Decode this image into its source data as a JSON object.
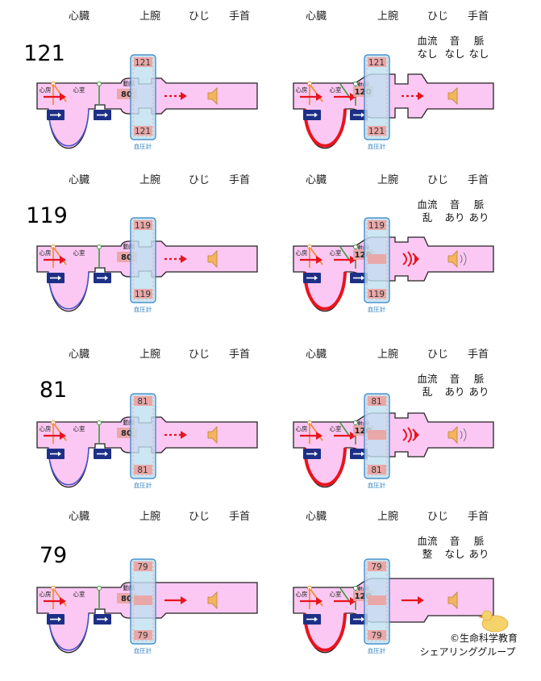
{
  "labels": {
    "heart": "心臓",
    "upper_arm": "上腕",
    "elbow": "ひじ",
    "wrist": "手首",
    "atrium": "心房",
    "ventricle": "心室",
    "artery": "動脈",
    "gauge": "血圧計",
    "flow": "血流",
    "sound": "音",
    "pulse": "脈"
  },
  "rows": [
    {
      "cuff_pressure": "121",
      "left": {
        "cuff_top": "121",
        "cuff_bottom": "121",
        "artery_value": "80",
        "state": "open-valve"
      },
      "right": {
        "cuff_top": "121",
        "cuff_bottom": "121",
        "artery_value": "120",
        "state": "closed",
        "flow": "なし",
        "sound": "なし",
        "pulse": "なし"
      }
    },
    {
      "cuff_pressure": "119",
      "left": {
        "cuff_top": "119",
        "cuff_bottom": "119",
        "artery_value": "80",
        "state": "open-valve"
      },
      "right": {
        "cuff_top": "119",
        "cuff_bottom": "119",
        "artery_value": "120",
        "state": "turbulent",
        "flow": "乱",
        "sound": "あり",
        "pulse": "あり"
      }
    },
    {
      "cuff_pressure": "81",
      "left": {
        "cuff_top": "81",
        "cuff_bottom": "81",
        "artery_value": "80",
        "state": "open-valve"
      },
      "right": {
        "cuff_top": "81",
        "cuff_bottom": "81",
        "artery_value": "120",
        "state": "turbulent",
        "flow": "乱",
        "sound": "あり",
        "pulse": "あり"
      }
    },
    {
      "cuff_pressure": "79",
      "left": {
        "cuff_top": "79",
        "cuff_bottom": "79",
        "artery_value": "80",
        "state": "open"
      },
      "right": {
        "cuff_top": "79",
        "cuff_bottom": "79",
        "artery_value": "120",
        "state": "open",
        "flow": "整",
        "sound": "なし",
        "pulse": "あり"
      }
    }
  ],
  "credit": {
    "line1": "©生命科学教育",
    "line2": "シェアリンググループ"
  },
  "colors": {
    "vessel_fill": "#fbc8f3",
    "vessel_stroke": "#222222",
    "cuff_fill": "#bfe0f0",
    "cuff_stroke": "#2b7fc4",
    "arrow_red": "#e8141e",
    "valve_green": "#3a9e3a",
    "valve_orange": "#f08a24",
    "button_navy": "#1d2f86",
    "ventricle_blue": "#4a55c8",
    "ventricle_red": "#e8141e",
    "speaker": "#f4b45c",
    "pressure_pink": "#e9a8a8"
  }
}
